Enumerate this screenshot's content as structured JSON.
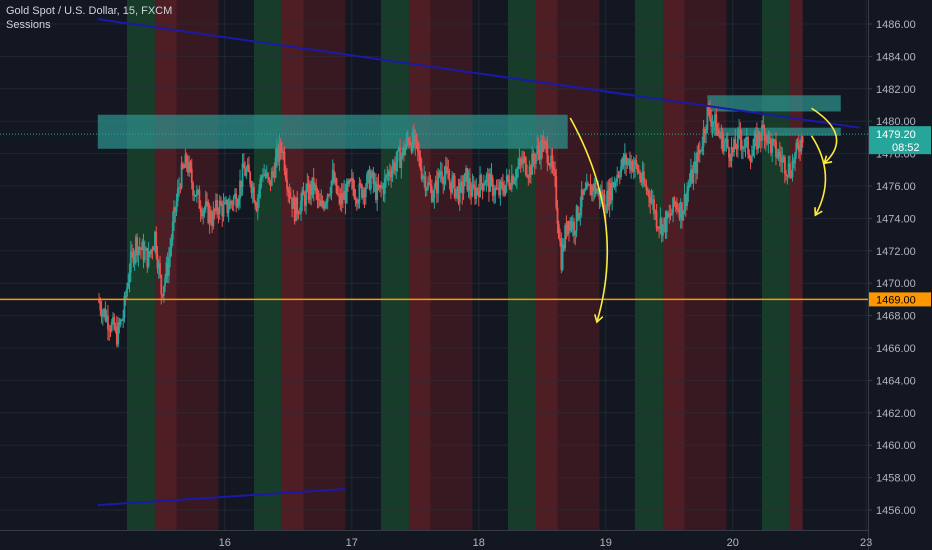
{
  "legend": {
    "symbol": "Gold Spot / U.S. Dollar, 15, FXCM",
    "indicator": "Sessions"
  },
  "colors": {
    "background": "#131722",
    "grid": "#2a2e39",
    "axis_text": "#b2b5be",
    "candle_up": "#26a69a",
    "candle_down": "#ef5350",
    "session_green": "#1b4a2e",
    "session_red": "#5b1f25",
    "trendline": "#1a1aa8",
    "support_line": "#ff9800",
    "zone": "#2e8d8a",
    "annotation_arrow": "#ffeb3b",
    "current_price_line": "#26a69a"
  },
  "price_axis": {
    "ticks": [
      "1486.00",
      "1484.00",
      "1482.00",
      "1480.00",
      "1478.00",
      "1476.00",
      "1474.00",
      "1472.00",
      "1470.00",
      "1468.00",
      "1466.00",
      "1464.00",
      "1462.00",
      "1460.00",
      "1458.00",
      "1456.00"
    ],
    "current_price": "1479.20",
    "countdown": "08:52",
    "support_label": "1469.00"
  },
  "time_axis": {
    "ticks": [
      "16",
      "17",
      "18",
      "19",
      "20",
      "23"
    ]
  },
  "chart_data": {
    "type": "candlestick",
    "symbol": "Gold Spot / U.S. Dollar",
    "interval": "15",
    "feed": "FXCM",
    "ylim": [
      1455,
      1488
    ],
    "x_axis_days": [
      "16",
      "17",
      "18",
      "19",
      "20",
      "23"
    ],
    "price_path": {
      "x_day": [
        15.0,
        15.05,
        15.1,
        15.15,
        15.2,
        15.25,
        15.3,
        15.35,
        15.4,
        15.45,
        15.5,
        15.55,
        15.6,
        15.65,
        15.7,
        15.75,
        15.8,
        15.85,
        15.9,
        15.95,
        16.0,
        16.05,
        16.1,
        16.15,
        16.2,
        16.25,
        16.3,
        16.35,
        16.4,
        16.45,
        16.5,
        16.55,
        16.6,
        16.65,
        16.7,
        16.75,
        16.8,
        16.85,
        16.9,
        16.95,
        17.0,
        17.05,
        17.1,
        17.15,
        17.2,
        17.25,
        17.3,
        17.35,
        17.4,
        17.45,
        17.5,
        17.55,
        17.6,
        17.65,
        17.7,
        17.75,
        17.8,
        17.85,
        17.9,
        17.95,
        18.0,
        18.05,
        18.1,
        18.15,
        18.2,
        18.25,
        18.3,
        18.35,
        18.4,
        18.45,
        18.5,
        18.55,
        18.6,
        18.65,
        18.7,
        18.75,
        18.8,
        18.85,
        18.9,
        18.95,
        19.0,
        19.05,
        19.1,
        19.15,
        19.2,
        19.25,
        19.3,
        19.35,
        19.4,
        19.45,
        19.5,
        19.55,
        19.6,
        19.65,
        19.7,
        19.75,
        19.8,
        19.85,
        19.9,
        19.95,
        20.0,
        20.05,
        20.1,
        20.15,
        20.2,
        20.25,
        20.3,
        20.35,
        20.4,
        20.45,
        20.5,
        20.55
      ],
      "price": [
        1469.0,
        1468.2,
        1467.5,
        1466.8,
        1468.0,
        1471.0,
        1472.5,
        1472.0,
        1471.5,
        1473.0,
        1469.5,
        1471.0,
        1474.0,
        1476.5,
        1477.5,
        1476.0,
        1475.0,
        1474.5,
        1474.0,
        1474.8,
        1474.5,
        1475.0,
        1475.5,
        1477.0,
        1476.5,
        1475.0,
        1477.0,
        1476.0,
        1477.5,
        1478.5,
        1476.0,
        1474.5,
        1475.0,
        1475.5,
        1476.0,
        1474.5,
        1475.5,
        1476.5,
        1475.0,
        1475.5,
        1476.0,
        1475.5,
        1476.0,
        1476.5,
        1475.5,
        1476.0,
        1477.0,
        1477.5,
        1478.0,
        1479.0,
        1478.5,
        1477.0,
        1476.0,
        1475.5,
        1477.0,
        1476.5,
        1476.0,
        1475.5,
        1476.5,
        1475.5,
        1476.0,
        1476.5,
        1476.0,
        1475.5,
        1476.0,
        1476.5,
        1477.0,
        1477.5,
        1477.0,
        1478.0,
        1478.5,
        1478.0,
        1476.0,
        1471.5,
        1474.0,
        1473.5,
        1475.0,
        1475.5,
        1476.0,
        1475.5,
        1475.0,
        1476.0,
        1477.0,
        1477.5,
        1477.5,
        1477.0,
        1476.0,
        1475.5,
        1474.0,
        1473.5,
        1474.0,
        1475.0,
        1474.5,
        1476.0,
        1477.0,
        1478.5,
        1480.5,
        1480.0,
        1479.0,
        1478.5,
        1478.0,
        1479.0,
        1478.5,
        1478.0,
        1479.0,
        1479.5,
        1478.5,
        1478.0,
        1477.5,
        1477.0,
        1478.0,
        1479.2
      ]
    },
    "session_bands": [
      {
        "start_day": 15.23,
        "end_day": 15.45,
        "color": "green"
      },
      {
        "start_day": 15.45,
        "end_day": 15.62,
        "color": "red"
      },
      {
        "start_day": 15.62,
        "end_day": 15.95,
        "color": "darkred"
      },
      {
        "start_day": 16.23,
        "end_day": 16.45,
        "color": "green"
      },
      {
        "start_day": 16.45,
        "end_day": 16.62,
        "color": "red"
      },
      {
        "start_day": 16.62,
        "end_day": 16.95,
        "color": "darkred"
      },
      {
        "start_day": 17.23,
        "end_day": 17.45,
        "color": "green"
      },
      {
        "start_day": 17.45,
        "end_day": 17.62,
        "color": "red"
      },
      {
        "start_day": 17.62,
        "end_day": 17.95,
        "color": "darkred"
      },
      {
        "start_day": 18.23,
        "end_day": 18.45,
        "color": "green"
      },
      {
        "start_day": 18.45,
        "end_day": 18.62,
        "color": "red"
      },
      {
        "start_day": 18.62,
        "end_day": 18.95,
        "color": "darkred"
      },
      {
        "start_day": 19.23,
        "end_day": 19.45,
        "color": "green"
      },
      {
        "start_day": 19.45,
        "end_day": 19.62,
        "color": "red"
      },
      {
        "start_day": 19.62,
        "end_day": 19.95,
        "color": "darkred"
      },
      {
        "start_day": 20.23,
        "end_day": 20.45,
        "color": "green"
      },
      {
        "start_day": 20.45,
        "end_day": 20.55,
        "color": "red"
      }
    ],
    "upper_trendline": {
      "start": {
        "day": 15.0,
        "price": 1486.3
      },
      "end": {
        "day": 21.0,
        "price": 1479.6
      }
    },
    "lower_trendline": {
      "start": {
        "day": 15.0,
        "price": 1456.3
      },
      "end": {
        "day": 16.95,
        "price": 1457.3
      }
    },
    "support_level": 1469.0,
    "zones": [
      {
        "x_start_day": 15.0,
        "x_end_day": 18.7,
        "y_low": 1478.3,
        "y_high": 1480.4
      },
      {
        "x_start_day": 19.8,
        "x_end_day": 20.85,
        "y_low": 1480.6,
        "y_high": 1481.6
      },
      {
        "x_start_day": 19.85,
        "x_end_day": 20.85,
        "y_low": 1479.1,
        "y_high": 1479.6
      }
    ],
    "arrows": [
      {
        "from": {
          "day": 18.72,
          "price": 1480.2
        },
        "to": {
          "day": 18.93,
          "price": 1467.6
        }
      },
      {
        "from": {
          "day": 20.62,
          "price": 1480.8
        },
        "to": {
          "day": 20.72,
          "price": 1477.4
        }
      },
      {
        "from": {
          "day": 20.62,
          "price": 1479.1
        },
        "to": {
          "day": 20.65,
          "price": 1474.2
        }
      }
    ]
  }
}
